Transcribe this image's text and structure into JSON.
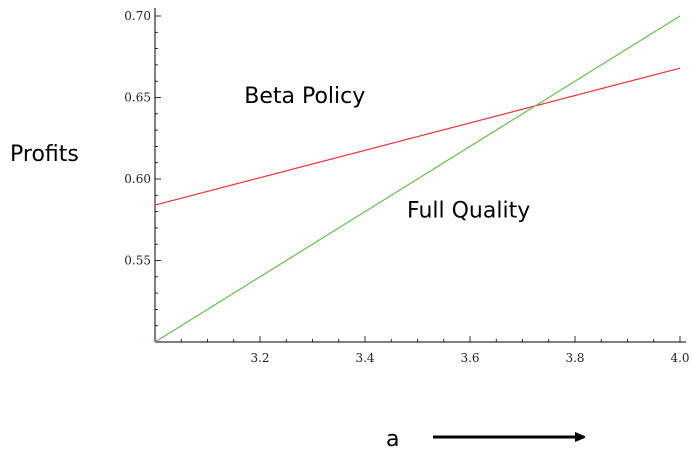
{
  "chart_data": {
    "type": "line",
    "title": "",
    "xlabel": "a",
    "ylabel": "Profits",
    "xlim": [
      3.0,
      4.0
    ],
    "ylim": [
      0.5,
      0.7
    ],
    "xticks": [
      3.2,
      3.4,
      3.6,
      3.8,
      4.0
    ],
    "xtick_labels": [
      "3.2",
      "3.4",
      "3.6",
      "3.8",
      "4.0"
    ],
    "yticks": [
      0.55,
      0.6,
      0.65,
      0.7
    ],
    "ytick_labels": [
      "0.55",
      "0.60",
      "0.65",
      "0.70"
    ],
    "grid": false,
    "series": [
      {
        "name": "Beta Policy",
        "color": "#e8323c",
        "x": [
          3.0,
          4.0
        ],
        "y": [
          0.584,
          0.668
        ]
      },
      {
        "name": "Full Quality",
        "color": "#62c04a",
        "x": [
          3.0,
          4.0
        ],
        "y": [
          0.5,
          0.7
        ]
      }
    ],
    "annotations": [
      {
        "text": "Beta Policy",
        "x": 3.17,
        "y": 0.6465
      },
      {
        "text": "Full Quality",
        "x": 3.48,
        "y": 0.5765
      }
    ],
    "x_arrow": true
  }
}
